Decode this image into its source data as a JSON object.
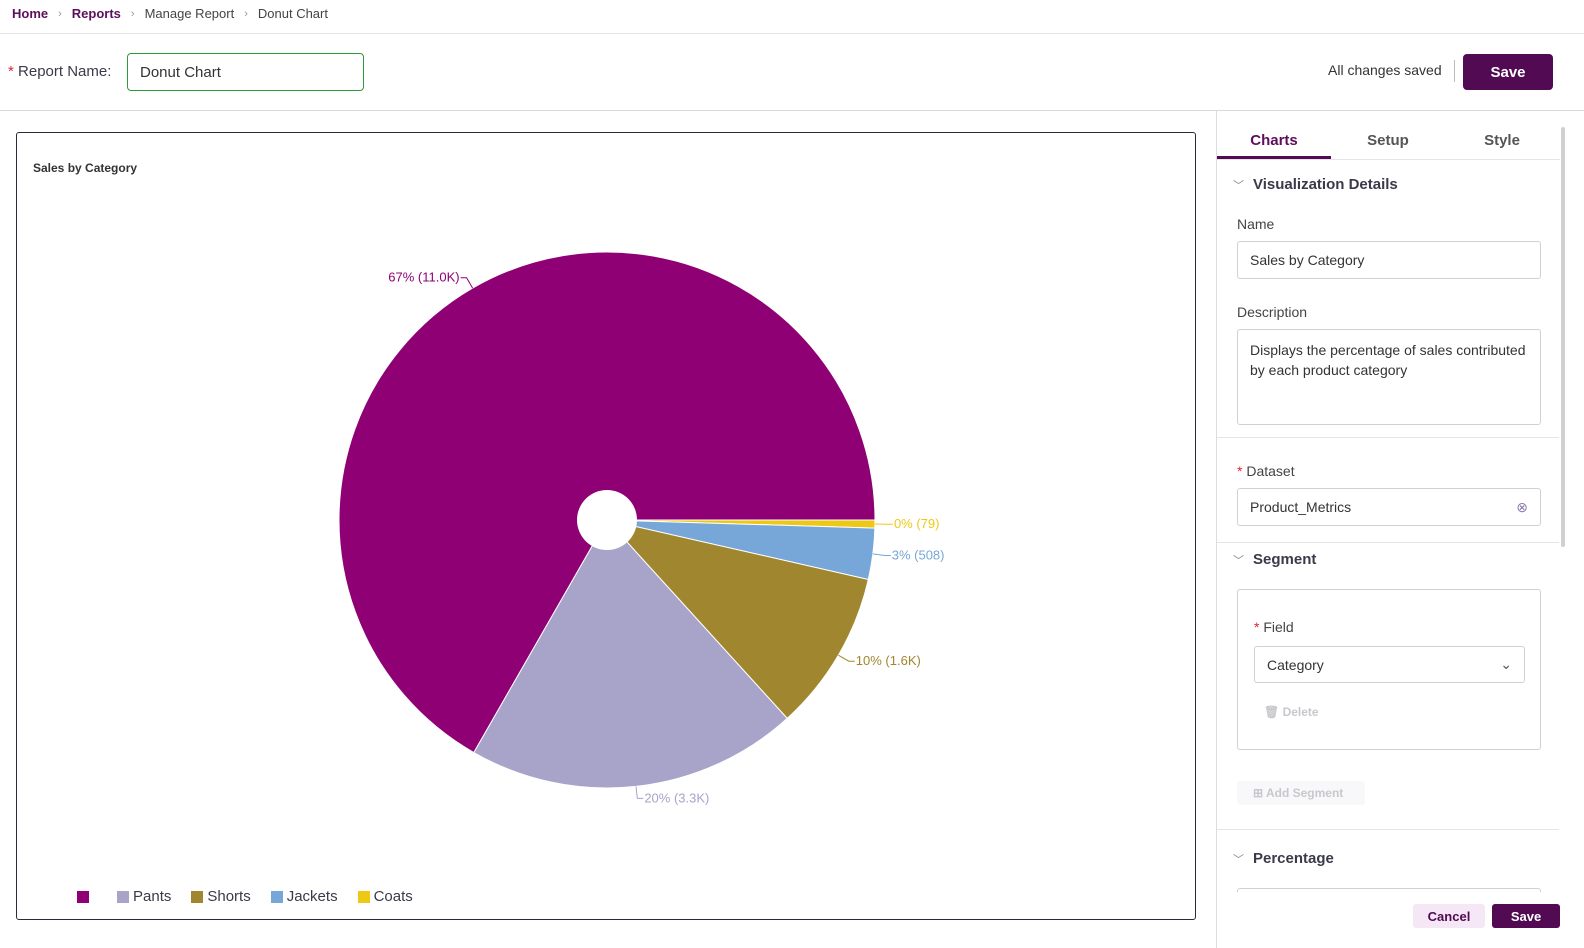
{
  "breadcrumb": [
    "Home",
    "Reports",
    "Manage Report",
    "Donut Chart"
  ],
  "header": {
    "report_name_label": "Report Name:",
    "report_name_value": "Donut Chart",
    "status": "All changes saved",
    "save_label": "Save"
  },
  "chart_data": {
    "type": "pie",
    "title": "Sales by Category",
    "inner_hole": true,
    "categories": [
      "",
      "Pants",
      "Shorts",
      "Jackets",
      "Coats"
    ],
    "values": [
      11000,
      3300,
      1600,
      508,
      79
    ],
    "data_labels": [
      "67% (11.0K)",
      "20% (3.3K)",
      "10% (1.6K)",
      "3% (508)",
      "0% (79)"
    ],
    "colors": [
      "#8e0073",
      "#a8a3c8",
      "#a0872f",
      "#76a7d8",
      "#edc916"
    ],
    "legend": "bottom-left"
  },
  "panel": {
    "tabs": [
      "Charts",
      "Setup",
      "Style"
    ],
    "viz_section": "Visualization Details",
    "name_label": "Name",
    "name_value": "Sales by Category",
    "desc_label": "Description",
    "desc_value": "Displays the percentage of sales contributed by each product category",
    "dataset_label": "Dataset",
    "dataset_value": "Product_Metrics",
    "segment_section": "Segment",
    "field_label": "Field",
    "field_value": "Category",
    "delete_label": "Delete",
    "add_segment_label": "Add Segment",
    "percentage_section": "Percentage",
    "cancel_label": "Cancel",
    "save_label": "Save"
  }
}
